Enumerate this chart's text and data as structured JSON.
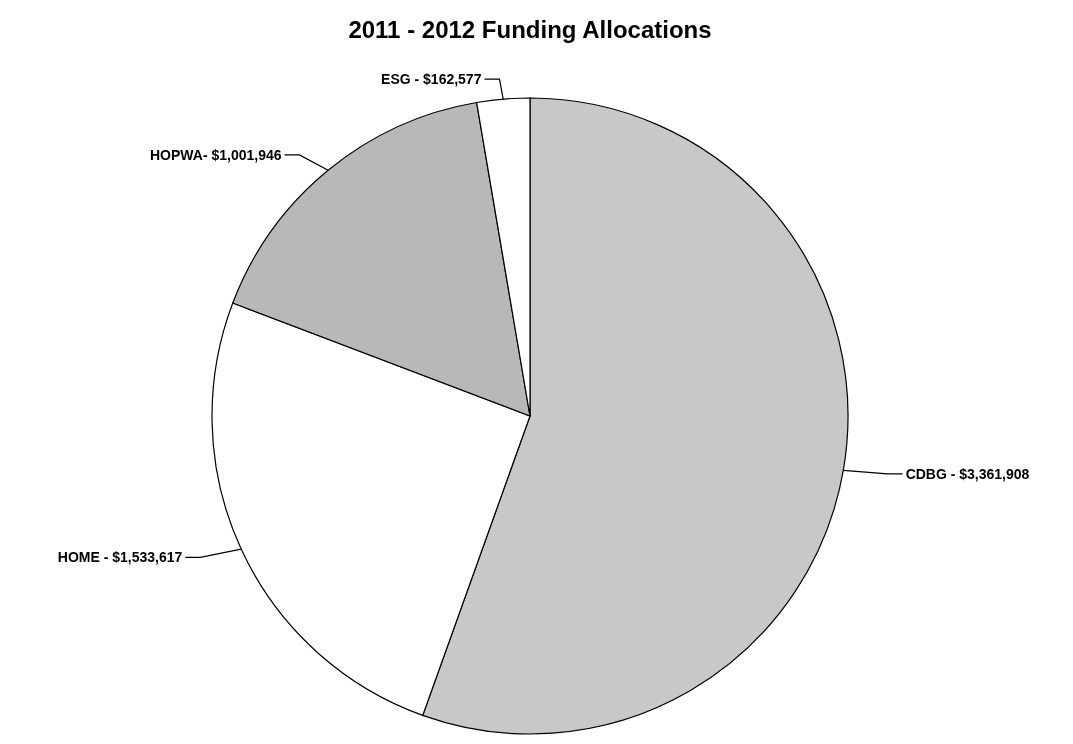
{
  "chart_data": {
    "type": "pie",
    "title": "2011 - 2012 Funding Allocations",
    "categories": [
      "CDBG -",
      "HOME -",
      "HOPWA-",
      "ESG -"
    ],
    "value_labels": [
      "$3,361,908",
      "$1,533,617",
      "$1,001,946",
      "$162,577"
    ],
    "values": [
      3361908,
      1533617,
      1001946,
      162577
    ],
    "colors": [
      "#c8c8c8",
      "#ffffff",
      "#b8b8b8",
      "#ffffff"
    ]
  }
}
